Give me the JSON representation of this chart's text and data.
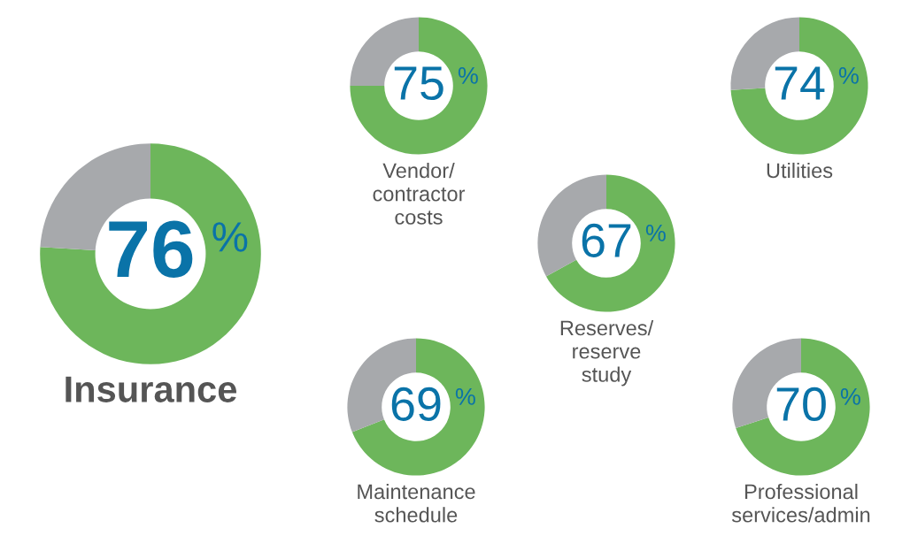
{
  "chart_data": [
    {
      "type": "donut",
      "title": "Insurance",
      "categories": [
        null,
        null
      ],
      "values": [
        76,
        24
      ],
      "colors": [
        "#6db65b",
        "#a7a9ac"
      ],
      "value_labels": [
        "76",
        null
      ],
      "annotations": [
        "%"
      ]
    },
    {
      "type": "donut",
      "title": "Vendor/\ncontractor\ncosts",
      "categories": [
        null,
        null
      ],
      "values": [
        75,
        25
      ],
      "colors": [
        "#6db65b",
        "#a7a9ac"
      ],
      "value_labels": [
        "75",
        null
      ],
      "annotations": [
        "%"
      ]
    },
    {
      "type": "donut",
      "title": "Utilities",
      "categories": [
        null,
        null
      ],
      "values": [
        74,
        26
      ],
      "colors": [
        "#6db65b",
        "#a7a9ac"
      ],
      "value_labels": [
        "74",
        null
      ],
      "annotations": [
        "%"
      ]
    },
    {
      "type": "donut",
      "title": "Reserves/\nreserve\nstudy",
      "categories": [
        null,
        null
      ],
      "values": [
        67,
        33
      ],
      "colors": [
        "#6db65b",
        "#a7a9ac"
      ],
      "value_labels": [
        "67",
        null
      ],
      "annotations": [
        "%"
      ]
    },
    {
      "type": "donut",
      "title": "Maintenance\nschedule",
      "categories": [
        null,
        null
      ],
      "values": [
        69,
        31
      ],
      "colors": [
        "#6db65b",
        "#a7a9ac"
      ],
      "value_labels": [
        "69",
        null
      ],
      "annotations": [
        "%"
      ]
    },
    {
      "type": "donut",
      "title": "Professional\nservices/admin",
      "categories": [
        null,
        null
      ],
      "values": [
        70,
        30
      ],
      "colors": [
        "#6db65b",
        "#a7a9ac"
      ],
      "value_labels": [
        "70",
        null
      ],
      "annotations": [
        "%"
      ]
    }
  ]
}
